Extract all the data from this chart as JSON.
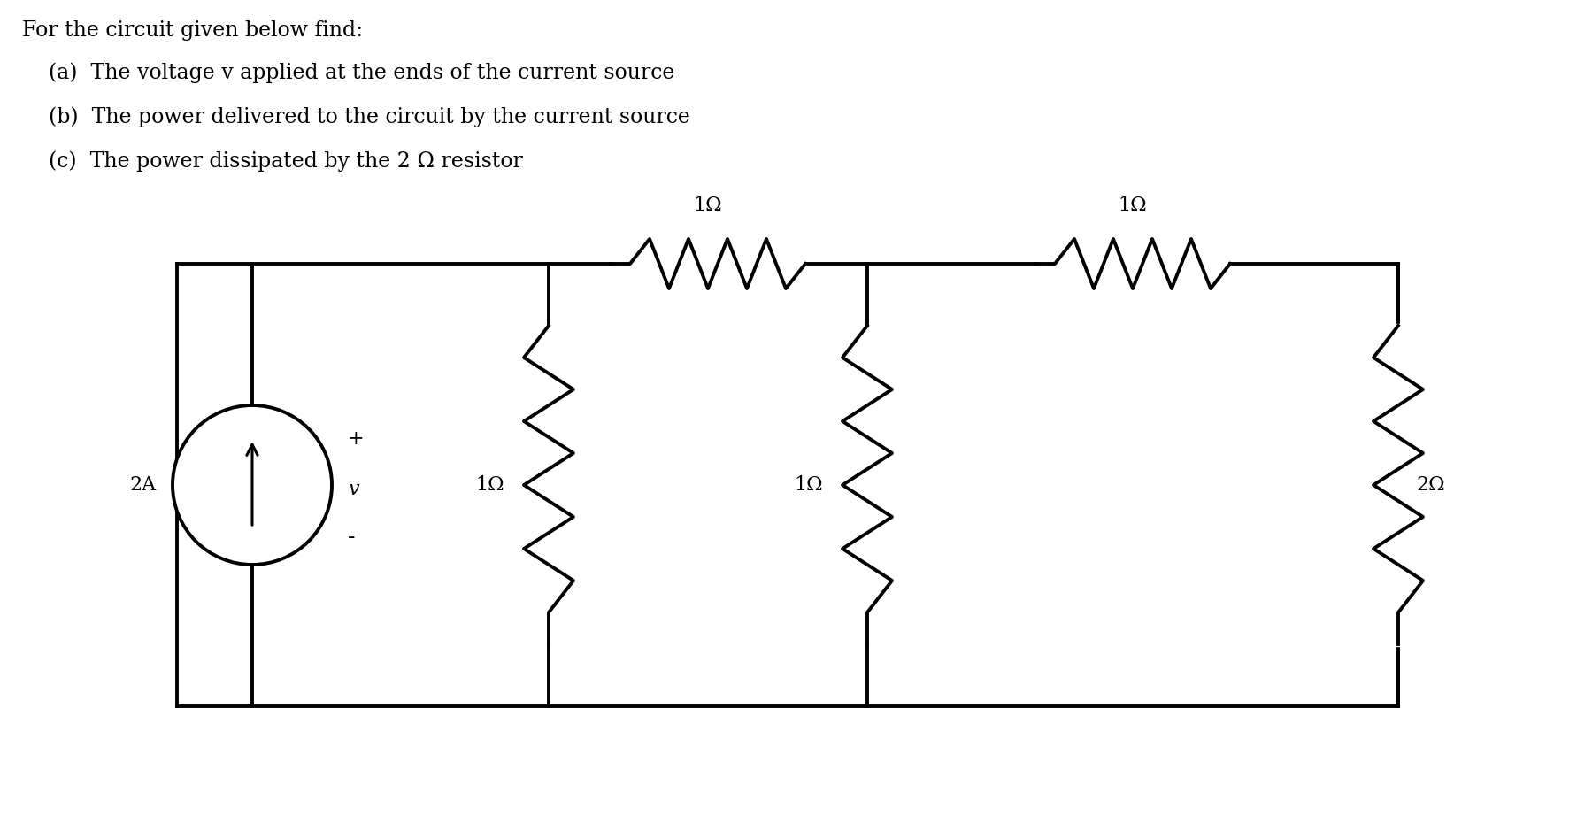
{
  "title_line1": "For the circuit given below find:",
  "title_line2a": "    (a)  The voltage v applied at the ends of the current source",
  "title_line2b": "    (b)  The power delivered to the circuit by the current source",
  "title_line2c": "    (c)  The power dissipated by the 2 Ω resistor",
  "label_2A": "2A",
  "label_v": "v",
  "label_plus": "+",
  "label_minus": "-",
  "label_R1_top_left": "1Ω",
  "label_R1_top_right": "1Ω",
  "label_R1_left": "1Ω",
  "label_R1_mid": "1Ω",
  "label_R2": "2Ω",
  "bg_color": "#ffffff",
  "line_color": "#000000",
  "font_size_title": 17,
  "font_size_labels": 15
}
